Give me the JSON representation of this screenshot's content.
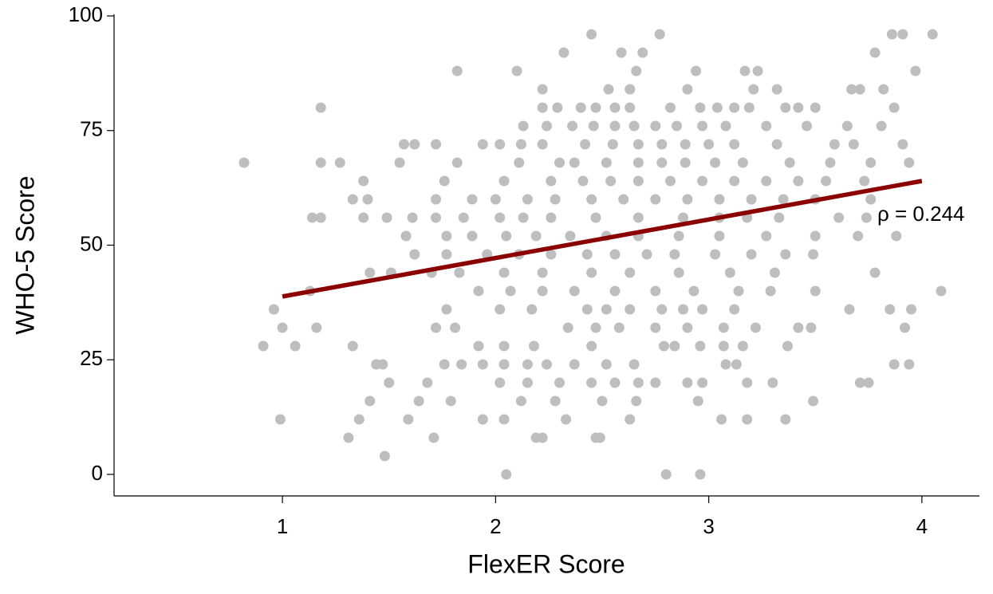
{
  "chart_data": {
    "type": "scatter",
    "xlabel": "FlexER Score",
    "ylabel": "WHO-5 Score",
    "xlim": [
      0.21,
      4.27
    ],
    "ylim": [
      -4.7,
      100
    ],
    "xticks": [
      1,
      2,
      3,
      4
    ],
    "yticks": [
      0,
      25,
      50,
      75,
      100
    ],
    "color": "#bebebe",
    "x": [
      2.45,
      2.77,
      3.86,
      3.91,
      4.05,
      2.32,
      2.59,
      2.69,
      3.78,
      1.82,
      2.1,
      2.66,
      2.94,
      3.17,
      3.23,
      3.97,
      2.22,
      2.53,
      2.63,
      2.9,
      3.21,
      3.32,
      3.67,
      3.71,
      3.82,
      1.18,
      2.22,
      2.29,
      2.4,
      2.47,
      2.56,
      2.63,
      2.82,
      2.96,
      3.04,
      3.12,
      3.19,
      3.36,
      3.42,
      3.5,
      3.87,
      2.13,
      2.24,
      2.36,
      2.46,
      2.56,
      2.65,
      2.75,
      2.85,
      2.97,
      3.08,
      3.27,
      3.46,
      3.65,
      3.81,
      1.57,
      1.62,
      1.72,
      1.94,
      2.02,
      2.12,
      2.22,
      2.42,
      2.55,
      2.67,
      2.78,
      2.89,
      3.0,
      3.12,
      3.32,
      3.59,
      3.68,
      3.91,
      0.82,
      1.18,
      1.27,
      1.55,
      1.82,
      2.11,
      2.3,
      2.37,
      2.52,
      2.67,
      2.78,
      2.89,
      3.03,
      3.16,
      3.38,
      3.57,
      3.76,
      3.94,
      1.38,
      1.76,
      2.04,
      2.26,
      2.41,
      2.54,
      2.67,
      2.82,
      2.97,
      3.12,
      3.27,
      3.42,
      3.55,
      3.73,
      1.33,
      1.4,
      1.72,
      1.89,
      2.0,
      2.15,
      2.28,
      2.45,
      2.6,
      2.75,
      2.9,
      3.05,
      3.2,
      3.35,
      3.5,
      3.76,
      1.14,
      1.18,
      1.38,
      1.49,
      1.61,
      1.72,
      1.85,
      2.02,
      2.13,
      2.26,
      2.47,
      2.67,
      2.88,
      3.05,
      3.18,
      3.33,
      3.61,
      3.74,
      1.58,
      1.77,
      1.89,
      2.05,
      2.19,
      2.35,
      2.52,
      2.67,
      2.86,
      3.05,
      3.27,
      3.5,
      3.7,
      3.88,
      1.62,
      1.77,
      1.96,
      2.11,
      2.26,
      2.43,
      2.56,
      2.71,
      2.84,
      3.03,
      3.2,
      3.36,
      3.49,
      1.41,
      1.51,
      1.7,
      1.83,
      2.04,
      2.22,
      2.45,
      2.63,
      2.86,
      3.1,
      3.31,
      3.78,
      1.13,
      1.92,
      2.07,
      2.22,
      2.37,
      2.56,
      2.75,
      2.93,
      3.14,
      3.29,
      3.5,
      4.09,
      0.96,
      1.77,
      2.02,
      2.17,
      2.43,
      2.52,
      2.63,
      2.78,
      2.88,
      2.97,
      3.12,
      3.66,
      3.85,
      3.95,
      1.0,
      1.16,
      1.72,
      1.81,
      2.34,
      2.47,
      2.58,
      2.75,
      2.9,
      3.07,
      3.22,
      3.42,
      3.48,
      3.92,
      0.91,
      1.06,
      1.33,
      1.92,
      2.04,
      2.18,
      2.45,
      2.79,
      2.84,
      2.96,
      3.07,
      3.16,
      3.37,
      1.44,
      1.47,
      1.76,
      1.84,
      1.94,
      2.04,
      2.15,
      2.24,
      2.37,
      2.52,
      2.65,
      3.08,
      3.13,
      3.87,
      3.94,
      1.5,
      1.68,
      2.02,
      2.15,
      2.3,
      2.45,
      2.56,
      2.67,
      2.75,
      2.9,
      2.97,
      3.18,
      3.3,
      3.71,
      3.75,
      1.41,
      1.64,
      1.79,
      2.12,
      2.28,
      2.5,
      2.66,
      2.95,
      3.49,
      0.99,
      1.36,
      1.59,
      1.94,
      2.04,
      2.33,
      2.63,
      3.06,
      3.18,
      3.36,
      1.31,
      1.71,
      2.19,
      2.22,
      2.47,
      2.49,
      1.48,
      2.05,
      2.8,
      2.96
    ],
    "values": [
      96,
      96,
      96,
      96,
      96,
      92,
      92,
      92,
      92,
      88,
      88,
      88,
      88,
      88,
      88,
      88,
      84,
      84,
      84,
      84,
      84,
      84,
      84,
      84,
      84,
      80,
      80,
      80,
      80,
      80,
      80,
      80,
      80,
      80,
      80,
      80,
      80,
      80,
      80,
      80,
      80,
      76,
      76,
      76,
      76,
      76,
      76,
      76,
      76,
      76,
      76,
      76,
      76,
      76,
      76,
      72,
      72,
      72,
      72,
      72,
      72,
      72,
      72,
      72,
      72,
      72,
      72,
      72,
      72,
      72,
      72,
      72,
      72,
      68,
      68,
      68,
      68,
      68,
      68,
      68,
      68,
      68,
      68,
      68,
      68,
      68,
      68,
      68,
      68,
      68,
      68,
      64,
      64,
      64,
      64,
      64,
      64,
      64,
      64,
      64,
      64,
      64,
      64,
      64,
      64,
      60,
      60,
      60,
      60,
      60,
      60,
      60,
      60,
      60,
      60,
      60,
      60,
      60,
      60,
      60,
      60,
      56,
      56,
      56,
      56,
      56,
      56,
      56,
      56,
      56,
      56,
      56,
      56,
      56,
      56,
      56,
      56,
      56,
      56,
      52,
      52,
      52,
      52,
      52,
      52,
      52,
      52,
      52,
      52,
      52,
      52,
      52,
      52,
      48,
      48,
      48,
      48,
      48,
      48,
      48,
      48,
      48,
      48,
      48,
      48,
      48,
      44,
      44,
      44,
      44,
      44,
      44,
      44,
      44,
      44,
      44,
      44,
      44,
      40,
      40,
      40,
      40,
      40,
      40,
      40,
      40,
      40,
      40,
      40,
      40,
      36,
      36,
      36,
      36,
      36,
      36,
      36,
      36,
      36,
      36,
      36,
      36,
      36,
      36,
      32,
      32,
      32,
      32,
      32,
      32,
      32,
      32,
      32,
      32,
      32,
      32,
      32,
      32,
      28,
      28,
      28,
      28,
      28,
      28,
      28,
      28,
      28,
      28,
      28,
      28,
      28,
      24,
      24,
      24,
      24,
      24,
      24,
      24,
      24,
      24,
      24,
      24,
      24,
      24,
      24,
      24,
      20,
      20,
      20,
      20,
      20,
      20,
      20,
      20,
      20,
      20,
      20,
      20,
      20,
      20,
      20,
      16,
      16,
      16,
      16,
      16,
      16,
      16,
      16,
      16,
      12,
      12,
      12,
      12,
      12,
      12,
      12,
      12,
      12,
      12,
      8,
      8,
      8,
      8,
      8,
      8,
      4,
      0,
      0,
      0
    ],
    "trend": {
      "x": [
        1,
        4
      ],
      "values": [
        38.8,
        64
      ],
      "color": "#8b0000"
    },
    "annotation": "ρ = 0.244"
  }
}
